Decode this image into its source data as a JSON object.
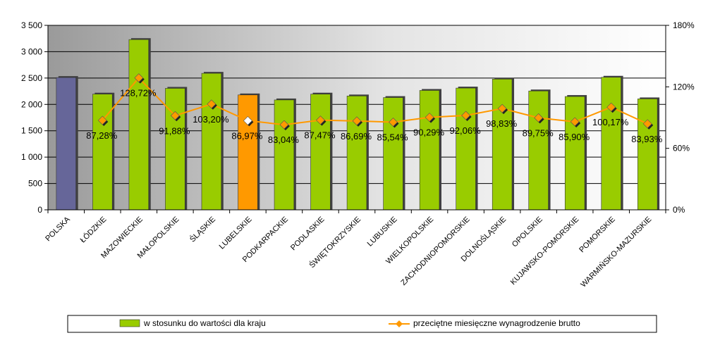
{
  "chart_data": {
    "type": "bar+line",
    "categories": [
      "POLSKA",
      "ŁÓDZKIE",
      "MAZOWIECKIE",
      "MAŁOPOLSKIE",
      "ŚLĄSKIE",
      "LUBELSKIE",
      "PODKARPACKIE",
      "PODLASKIE",
      "ŚWIĘTOKRZYSKIE",
      "LUBUSKIE",
      "WIELKOPOLSKIE",
      "ZACHODNIOPOMORSKIE",
      "DOLNOŚLĄSKIE",
      "OPOLSKIE",
      "KUJAWSKO-POMORSKIE",
      "POMORSKIE",
      "WARMIŃSKO-MAZURSKIE"
    ],
    "bar_series": {
      "name": "w stosunku do wartości dla kraju",
      "values": [
        2510,
        2195,
        3230,
        2305,
        2590,
        2180,
        2085,
        2195,
        2160,
        2130,
        2265,
        2310,
        2480,
        2255,
        2150,
        2515,
        2105
      ],
      "color": "#99cc00",
      "highlight": {
        "0": "#666699",
        "5": "#ff9900"
      }
    },
    "line_series": {
      "name": "przeciętne miesięczne wynagrodzenie brutto",
      "values": [
        null,
        87.28,
        128.72,
        91.88,
        103.2,
        86.97,
        83.04,
        87.47,
        86.69,
        85.54,
        90.29,
        92.06,
        98.83,
        89.75,
        85.9,
        100.17,
        83.93
      ],
      "labels": [
        "",
        "87,28%",
        "128,72%",
        "91,88%",
        "103,20%",
        "86,97%",
        "83,04%",
        "87,47%",
        "86,69%",
        "85,54%",
        "90,29%",
        "92,06%",
        "98,83%",
        "89,75%",
        "85,90%",
        "100,17%",
        "83,93%"
      ],
      "color": "#ff9900"
    },
    "y_left": {
      "min": 0,
      "max": 3500,
      "ticks": [
        "0",
        "500",
        "1 000",
        "1 500",
        "2 000",
        "2 500",
        "3 000",
        "3 500"
      ]
    },
    "y_right": {
      "min": 0,
      "max": 180,
      "ticks": [
        "0%",
        "60%",
        "120%",
        "180%"
      ]
    },
    "grid": true,
    "legend_position": "bottom"
  }
}
